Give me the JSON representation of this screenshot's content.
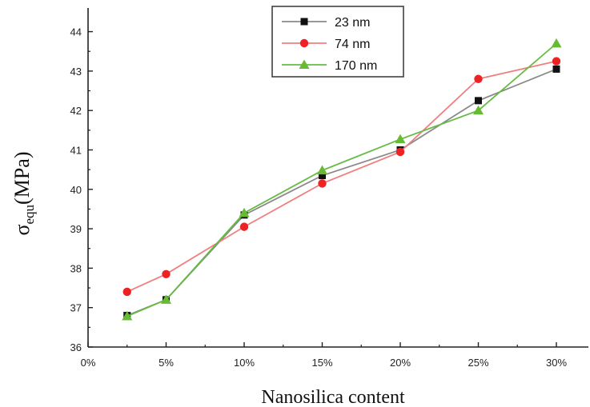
{
  "chart_data": {
    "type": "line",
    "xlabel": "Nanosilica content",
    "ylabel_main": "σ",
    "ylabel_sub": "equ",
    "ylabel_unit": "(MPa)",
    "x_ticks": [
      "0%",
      "5%",
      "10%",
      "15%",
      "20%",
      "25%",
      "30%"
    ],
    "y_ticks": [
      "36",
      "37",
      "38",
      "39",
      "40",
      "41",
      "42",
      "43",
      "44"
    ],
    "xlim": [
      0,
      30
    ],
    "ylim": [
      36,
      44.6
    ],
    "grid": false,
    "legend_position": "top-center",
    "series": [
      {
        "name": "23 nm",
        "marker": "square",
        "color": "#8a8a8a",
        "marker_color": "#111111",
        "x": [
          2.5,
          5,
          10,
          15,
          20,
          25,
          30
        ],
        "y": [
          36.8,
          37.2,
          39.35,
          40.35,
          41.0,
          42.25,
          43.05
        ]
      },
      {
        "name": "74 nm",
        "marker": "circle",
        "color": "#f08080",
        "marker_color": "#ee2222",
        "x": [
          2.5,
          5,
          10,
          15,
          20,
          25,
          30
        ],
        "y": [
          37.4,
          37.85,
          39.05,
          40.15,
          40.95,
          42.8,
          43.25
        ]
      },
      {
        "name": "170 nm",
        "marker": "triangle",
        "color": "#66bb44",
        "marker_color": "#66bb33",
        "x": [
          2.5,
          5,
          10,
          15,
          20,
          25,
          30
        ],
        "y": [
          36.78,
          37.2,
          39.4,
          40.48,
          41.27,
          42.0,
          43.7
        ]
      }
    ]
  }
}
